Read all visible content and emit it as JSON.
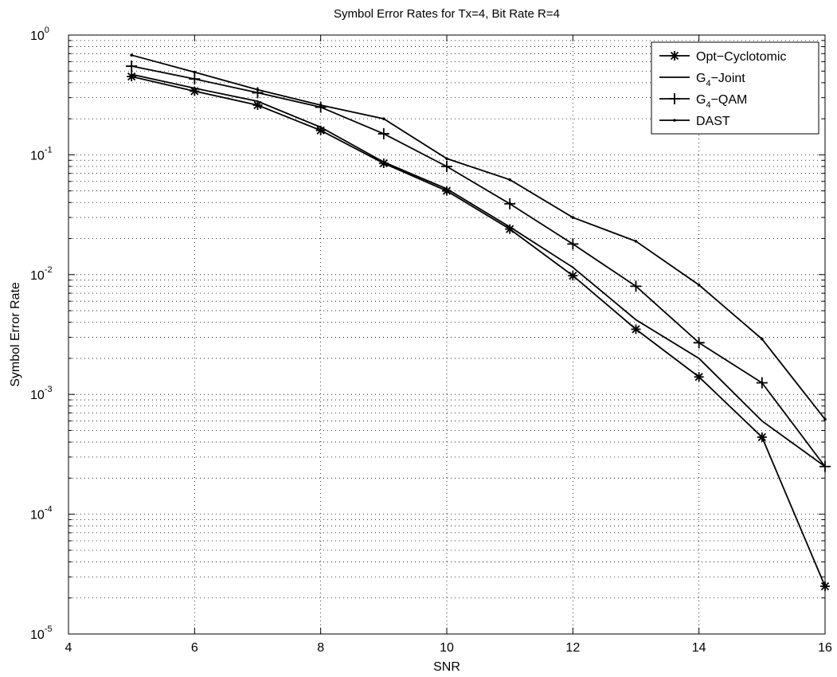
{
  "chart_data": {
    "type": "line",
    "title": "Symbol Error Rates for Tx=4, Bit Rate R=4",
    "xlabel": "SNR",
    "ylabel": "Symbol Error Rate",
    "xlim": [
      4,
      16
    ],
    "ylim": [
      1e-05,
      1
    ],
    "yscale": "log",
    "grid": true,
    "legend_position": "top-right",
    "x_ticks": [
      "4",
      "6",
      "8",
      "10",
      "12",
      "14",
      "16"
    ],
    "y_ticks": [
      {
        "base": "10",
        "exp": "0"
      },
      {
        "base": "10",
        "exp": "-1"
      },
      {
        "base": "10",
        "exp": "-2"
      },
      {
        "base": "10",
        "exp": "-3"
      },
      {
        "base": "10",
        "exp": "-4"
      },
      {
        "base": "10",
        "exp": "-5"
      }
    ],
    "x": [
      5,
      6,
      7,
      8,
      9,
      10,
      11,
      12,
      13,
      14,
      15,
      16
    ],
    "series": [
      {
        "legend_main": "Opt−Cyclotomic",
        "marker": "asterisk",
        "values": [
          0.45,
          0.34,
          0.26,
          0.16,
          0.085,
          0.05,
          0.024,
          0.0098,
          0.0035,
          0.0014,
          0.00044,
          2.5e-05
        ]
      },
      {
        "legend_main": "G",
        "legend_sub": "4",
        "legend_rest": "−Joint",
        "marker": "none",
        "values": [
          0.47,
          0.36,
          0.28,
          0.17,
          0.087,
          0.052,
          0.025,
          0.0115,
          0.0042,
          0.002,
          0.0006,
          0.00025
        ]
      },
      {
        "legend_main": "G",
        "legend_sub": "4",
        "legend_rest": "−QAM",
        "marker": "plus",
        "values": [
          0.55,
          0.43,
          0.33,
          0.25,
          0.15,
          0.08,
          0.039,
          0.018,
          0.008,
          0.0027,
          0.00125,
          0.00025
        ]
      },
      {
        "legend_main": "DAST",
        "marker": "dot",
        "values": [
          0.68,
          0.49,
          0.35,
          0.26,
          0.2,
          0.093,
          0.062,
          0.03,
          0.019,
          0.0082,
          0.0029,
          0.00062
        ]
      }
    ]
  }
}
